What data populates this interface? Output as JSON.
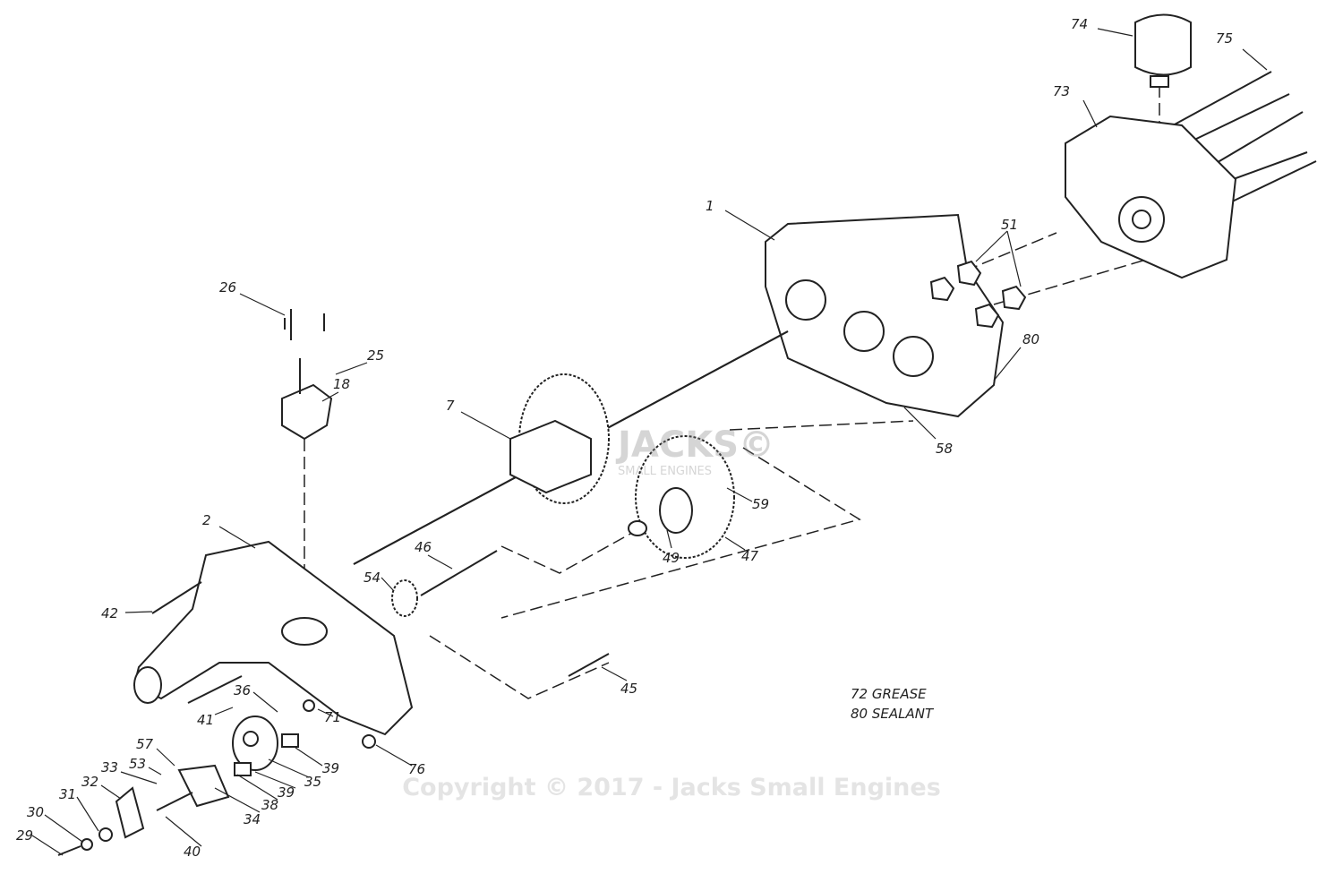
{
  "callouts": [
    "74",
    "75",
    "73",
    "1",
    "51",
    "80",
    "26",
    "25",
    "18",
    "7",
    "58",
    "59",
    "46",
    "54",
    "49",
    "47",
    "2",
    "42",
    "45",
    "36",
    "41",
    "71",
    "57",
    "53",
    "33",
    "32",
    "31",
    "30",
    "29",
    "34",
    "38",
    "39",
    "39",
    "35",
    "40",
    "76"
  ],
  "notes": [
    "72 GREASE",
    "80 SEALANT"
  ],
  "watermark": "Copyright © 2017 - Jacks Small Engines",
  "logo": {
    "name": "JACKS©",
    "tagline": "SMALL ENGINES"
  }
}
